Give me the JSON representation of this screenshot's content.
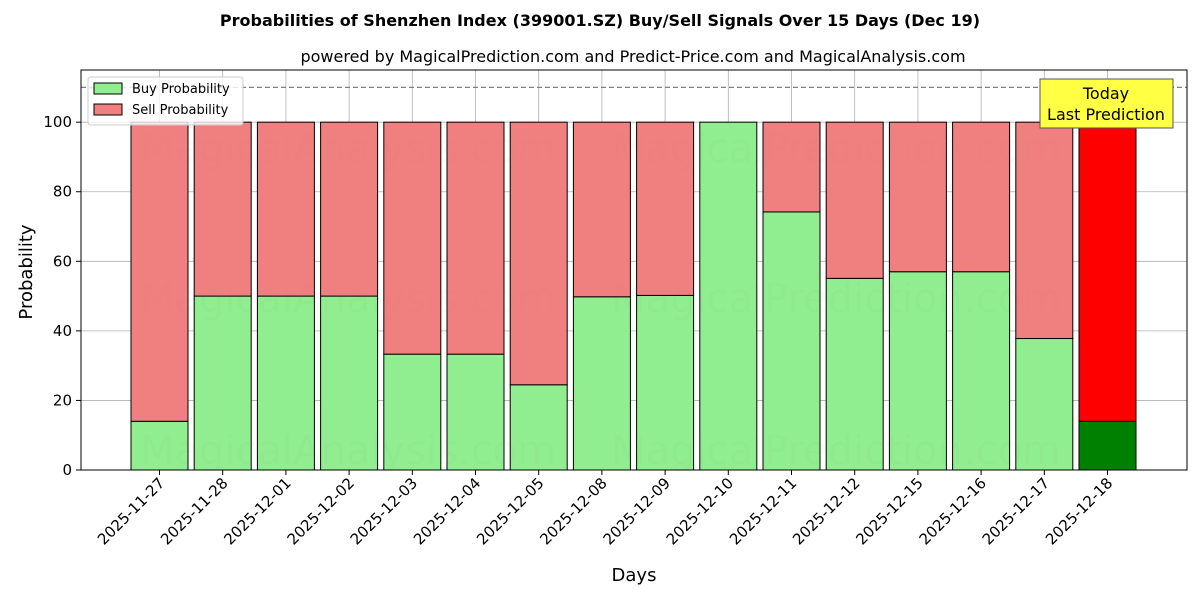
{
  "chart_data": {
    "type": "bar",
    "stacked": true,
    "title": "Probabilities of Shenzhen Index (399001.SZ) Buy/Sell Signals Over 15 Days (Dec 19)",
    "subtitle": "powered by MagicalPrediction.com and Predict-Price.com and MagicalAnalysis.com",
    "xlabel": "Days",
    "ylabel": "Probability",
    "ylim": [
      0,
      115
    ],
    "yticks": [
      0,
      20,
      40,
      60,
      80,
      100
    ],
    "grid": true,
    "reference_line": 110,
    "legend_position": "top-left",
    "categories": [
      "2025-11-27",
      "2025-11-28",
      "2025-12-01",
      "2025-12-02",
      "2025-12-03",
      "2025-12-04",
      "2025-12-05",
      "2025-12-08",
      "2025-12-09",
      "2025-12-10",
      "2025-12-11",
      "2025-12-12",
      "2025-12-15",
      "2025-12-16",
      "2025-12-17",
      "2025-12-18"
    ],
    "series": [
      {
        "name": "Buy Probability",
        "color": "#90ee90",
        "values": [
          14,
          50,
          50,
          50,
          33.3,
          33.3,
          24.5,
          49.8,
          50.2,
          100,
          74.2,
          55.1,
          57,
          57,
          37.8,
          14
        ]
      },
      {
        "name": "Sell Probability",
        "color": "#f08080",
        "values": [
          86,
          50,
          50,
          50,
          66.7,
          66.7,
          75.5,
          50.2,
          49.8,
          0,
          25.8,
          44.9,
          43,
          43,
          62.2,
          86
        ]
      }
    ],
    "highlight": {
      "index": 15,
      "buy_color": "#008000",
      "sell_color": "#ff0000",
      "label_line1": "Today",
      "label_line2": "Last Prediction",
      "label_bg": "#ffff44"
    },
    "watermarks": [
      "MagicalAnalysis.com",
      "MagicalPrediction.com"
    ]
  }
}
